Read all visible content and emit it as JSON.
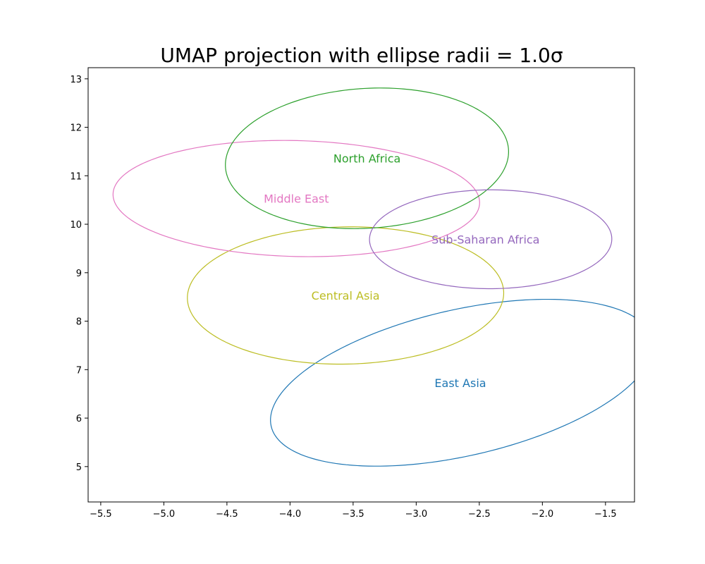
{
  "chart_data": {
    "type": "scatter",
    "title": "UMAP projection with ellipse radii = 1.0σ",
    "xlabel": "",
    "ylabel": "",
    "xlim": [
      -5.6,
      -1.27
    ],
    "ylim": [
      4.27,
      13.23
    ],
    "xticks": [
      -5.5,
      -5.0,
      -4.5,
      -4.0,
      -3.5,
      -3.0,
      -2.5,
      -2.0,
      -1.5
    ],
    "xtick_labels": [
      "−5.5",
      "−5.0",
      "−4.5",
      "−4.0",
      "−3.5",
      "−3.0",
      "−2.5",
      "−2.0",
      "−1.5"
    ],
    "yticks": [
      5,
      6,
      7,
      8,
      9,
      10,
      11,
      12,
      13
    ],
    "ytick_labels": [
      "5",
      "6",
      "7",
      "8",
      "9",
      "10",
      "11",
      "12",
      "13"
    ],
    "grid": false,
    "series": [
      {
        "name": "East Asia",
        "label": "East Asia",
        "color": "#1f77b4",
        "center": [
          -2.64,
          6.73
        ],
        "radius_x": 1.19,
        "radius_y": 1.96,
        "angle_deg": -37,
        "label_pos": [
          -2.65,
          6.73
        ]
      },
      {
        "name": "Central Asia",
        "label": "Central Asia",
        "color": "#bcbd22",
        "center": [
          -3.56,
          8.53
        ],
        "radius_x": 1.25,
        "radius_y": 1.42,
        "angle_deg": -8,
        "label_pos": [
          -3.56,
          8.53
        ]
      },
      {
        "name": "Middle East",
        "label": "Middle East",
        "color": "#e377c2",
        "center": [
          -3.95,
          10.53
        ],
        "radius_x": 1.46,
        "radius_y": 1.19,
        "angle_deg": -10,
        "label_pos": [
          -3.95,
          10.53
        ]
      },
      {
        "name": "North Africa",
        "label": "North Africa",
        "color": "#2ca02c",
        "center": [
          -3.39,
          11.36
        ],
        "radius_x": 1.11,
        "radius_y": 1.46,
        "angle_deg": -10,
        "label_pos": [
          -3.39,
          11.36
        ]
      },
      {
        "name": "Sub-Saharan Africa",
        "label": "Sub-Saharan Africa",
        "color": "#9467bd",
        "center": [
          -2.41,
          9.69
        ],
        "radius_x": 0.96,
        "radius_y": 1.02,
        "angle_deg": -3,
        "label_pos": [
          -2.45,
          9.69
        ]
      }
    ]
  }
}
